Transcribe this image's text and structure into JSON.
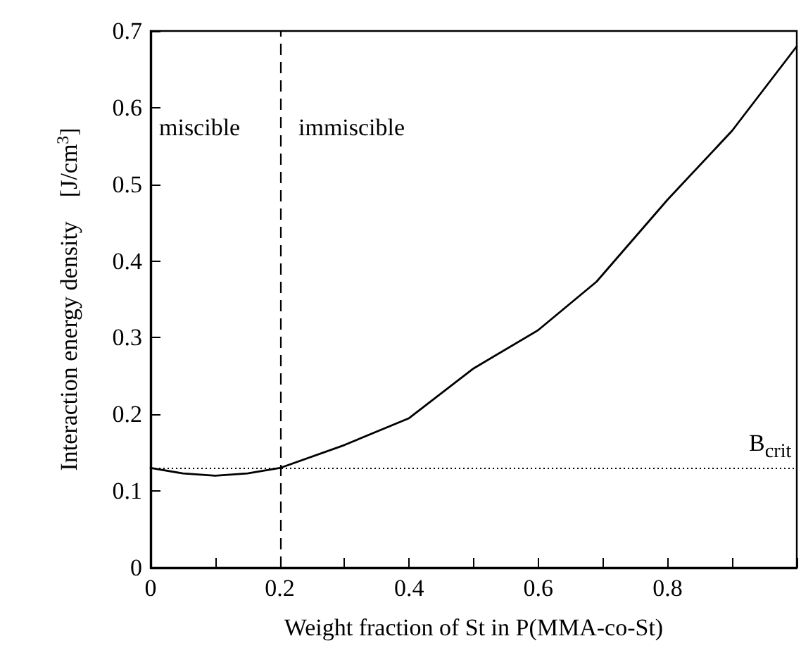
{
  "chart_data": {
    "type": "line",
    "xlabel": "Weight fraction of St in P(MMA-co-St)",
    "ylabel": "Interaction energy density    [J/cm$^{3}$]",
    "x": [
      0,
      0.05,
      0.1,
      0.15,
      0.2,
      0.3,
      0.4,
      0.5,
      0.6,
      0.69,
      0.8,
      0.9,
      1.0
    ],
    "series": [
      {
        "color": "#000000",
        "values": [
          0.13,
          0.123,
          0.12,
          0.123,
          0.13,
          0.16,
          0.195,
          0.26,
          0.31,
          0.373,
          0.48,
          0.57,
          0.68
        ]
      }
    ],
    "xlim": [
      0,
      1
    ],
    "xticks": [
      0,
      {
        "value": 0.1,
        "label": null
      },
      0.2,
      {
        "value": 0.3,
        "label": null
      },
      0.4,
      {
        "value": 0.5,
        "label": null
      },
      0.6,
      {
        "value": 0.7,
        "label": null
      },
      0.8,
      {
        "value": 0.9,
        "label": null
      },
      {
        "value": 1,
        "label": null
      }
    ],
    "ylim": [
      0,
      0.7
    ],
    "yticks": [
      0,
      0.1,
      0.2,
      0.3,
      0.4,
      0.5,
      0.6,
      0.7
    ],
    "ref_lines": [
      {
        "axis": "x",
        "value": 0.2,
        "line_style": "dashed",
        "color": "#000000"
      },
      {
        "axis": "y",
        "value": 0.13,
        "label": "B$_{crit}$",
        "line_style": "dotted",
        "color": "#000000"
      }
    ],
    "annotations": [
      "miscible",
      "immiscible"
    ],
    "grid": false,
    "marker": "none",
    "line_style": "solid"
  }
}
